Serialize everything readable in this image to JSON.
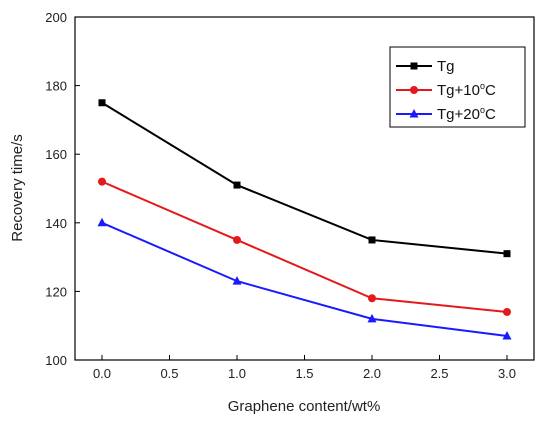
{
  "chart_data": {
    "type": "line",
    "title": "",
    "xlabel": "Graphene content/wt%",
    "ylabel": "Recovery time/s",
    "xlim": [
      -0.2,
      3.2
    ],
    "ylim": [
      100,
      200
    ],
    "x_ticks": [
      "0.0",
      "0.5",
      "1.0",
      "1.5",
      "2.0",
      "2.5",
      "3.0"
    ],
    "y_ticks": [
      "100",
      "120",
      "140",
      "160",
      "180",
      "200"
    ],
    "x": [
      0.0,
      1.0,
      2.0,
      3.0
    ],
    "legend_position": "top-right",
    "grid": false,
    "series": [
      {
        "name": "Tg",
        "name_main": "Tg",
        "name_sup": "",
        "name_tail": "",
        "color": "#000000",
        "marker": "square",
        "values": [
          175,
          151,
          135,
          131
        ]
      },
      {
        "name": "Tg+10°C",
        "name_main": "Tg+10",
        "name_sup": "o",
        "name_tail": "C",
        "color": "#e31a1c",
        "marker": "circle",
        "values": [
          152,
          135,
          118,
          114
        ]
      },
      {
        "name": "Tg+20°C",
        "name_main": "Tg+20",
        "name_sup": "o",
        "name_tail": "C",
        "color": "#1a1aff",
        "marker": "triangle",
        "values": [
          140,
          123,
          112,
          107
        ]
      }
    ]
  }
}
